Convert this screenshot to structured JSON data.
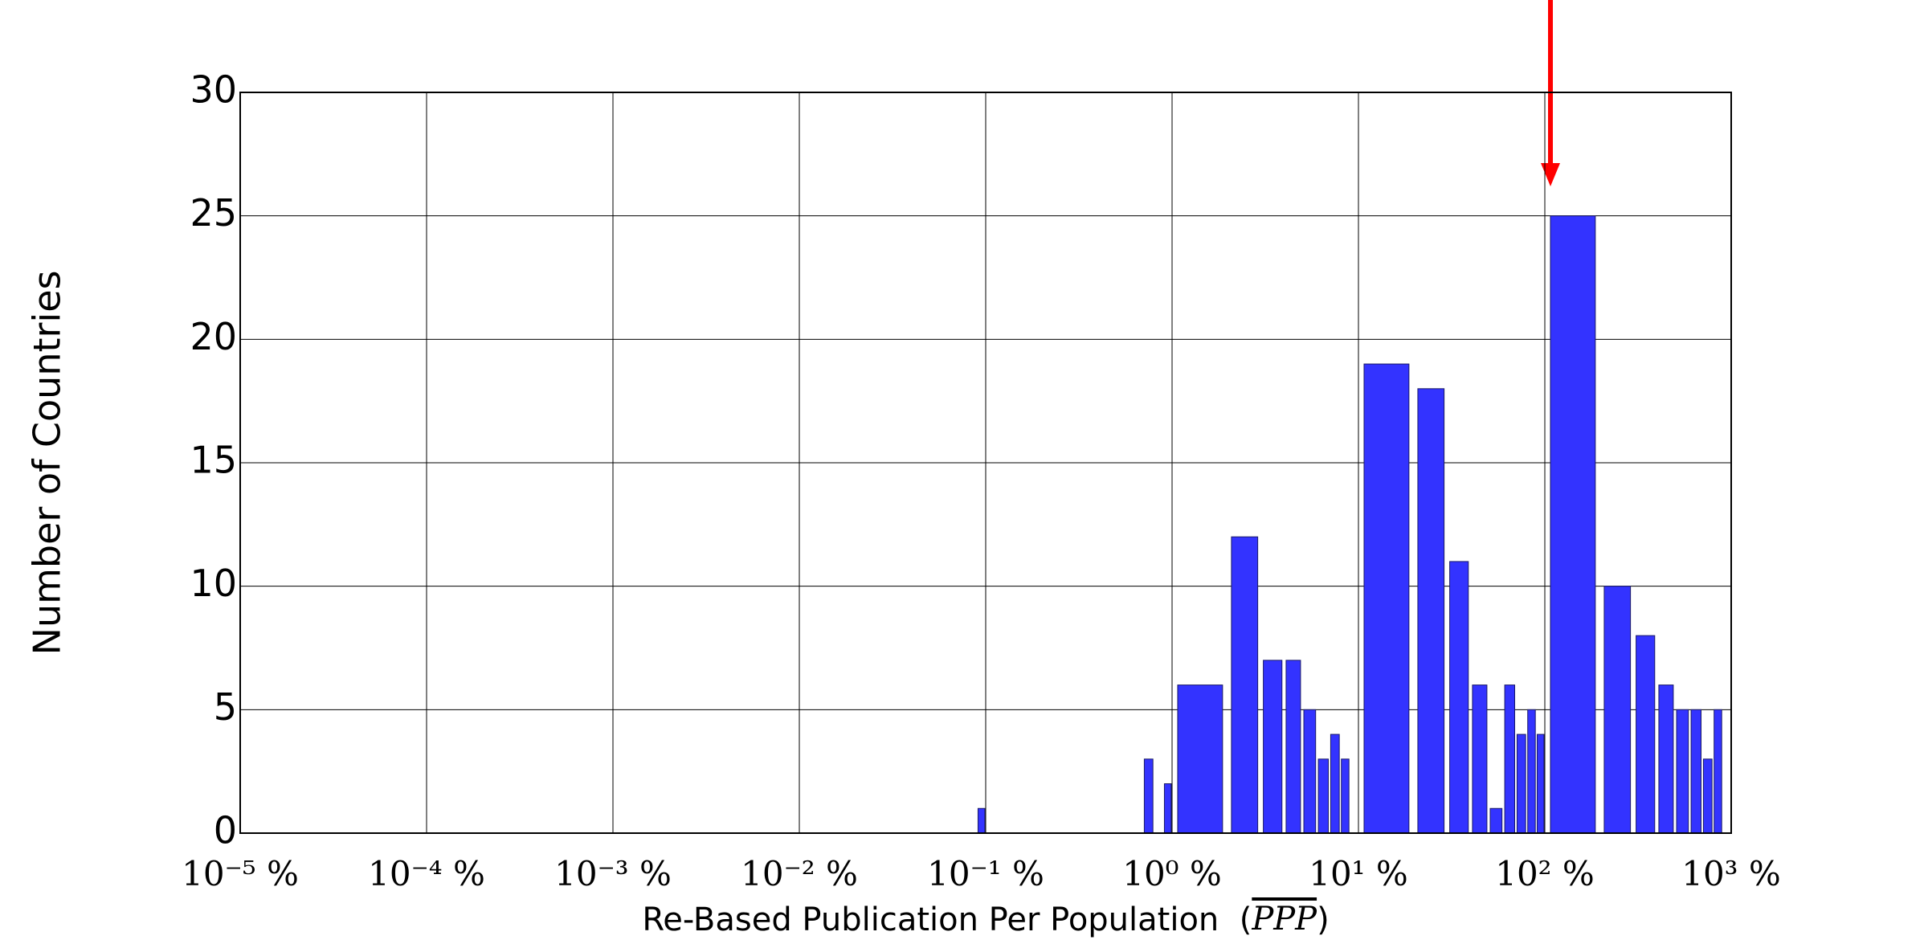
{
  "chart_data": {
    "type": "histogram",
    "xlabel": "Re-Based Publication Per Population",
    "xlabel_symbol": "PPP",
    "ylabel": "Number of Countries",
    "bins": [
      0.09,
      0.1,
      0.7,
      0.8,
      0.9,
      1,
      2,
      3,
      4,
      5,
      6,
      7,
      8,
      9,
      10,
      20,
      30,
      40,
      50,
      60,
      70,
      80,
      90,
      100,
      200,
      300,
      400,
      500,
      600,
      700,
      800,
      900
    ],
    "values": [
      1,
      0,
      3,
      0,
      2,
      6,
      12,
      7,
      7,
      5,
      3,
      4,
      3,
      0,
      19,
      18,
      11,
      6,
      1,
      6,
      4,
      5,
      4,
      25,
      10,
      8,
      6,
      5,
      5,
      3,
      5
    ],
    "color": "#3333ff",
    "xscale": "log",
    "xlim": [
      1e-05,
      1000
    ],
    "xticks": [
      {
        "value": 1e-05,
        "label": "10⁻⁵ %"
      },
      {
        "value": 0.0001,
        "label": "10⁻⁴ %"
      },
      {
        "value": 0.001,
        "label": "10⁻³ %"
      },
      {
        "value": 0.01,
        "label": "10⁻² %"
      },
      {
        "value": 0.1,
        "label": "10⁻¹ %"
      },
      {
        "value": 1,
        "label": "10⁰ %"
      },
      {
        "value": 10,
        "label": "10¹ %"
      },
      {
        "value": 100,
        "label": "10² %"
      },
      {
        "value": 1000,
        "label": "10³ %"
      }
    ],
    "ylim": [
      0,
      30
    ],
    "yticks": [
      0,
      5,
      10,
      15,
      20,
      25,
      30
    ],
    "grid": true
  }
}
